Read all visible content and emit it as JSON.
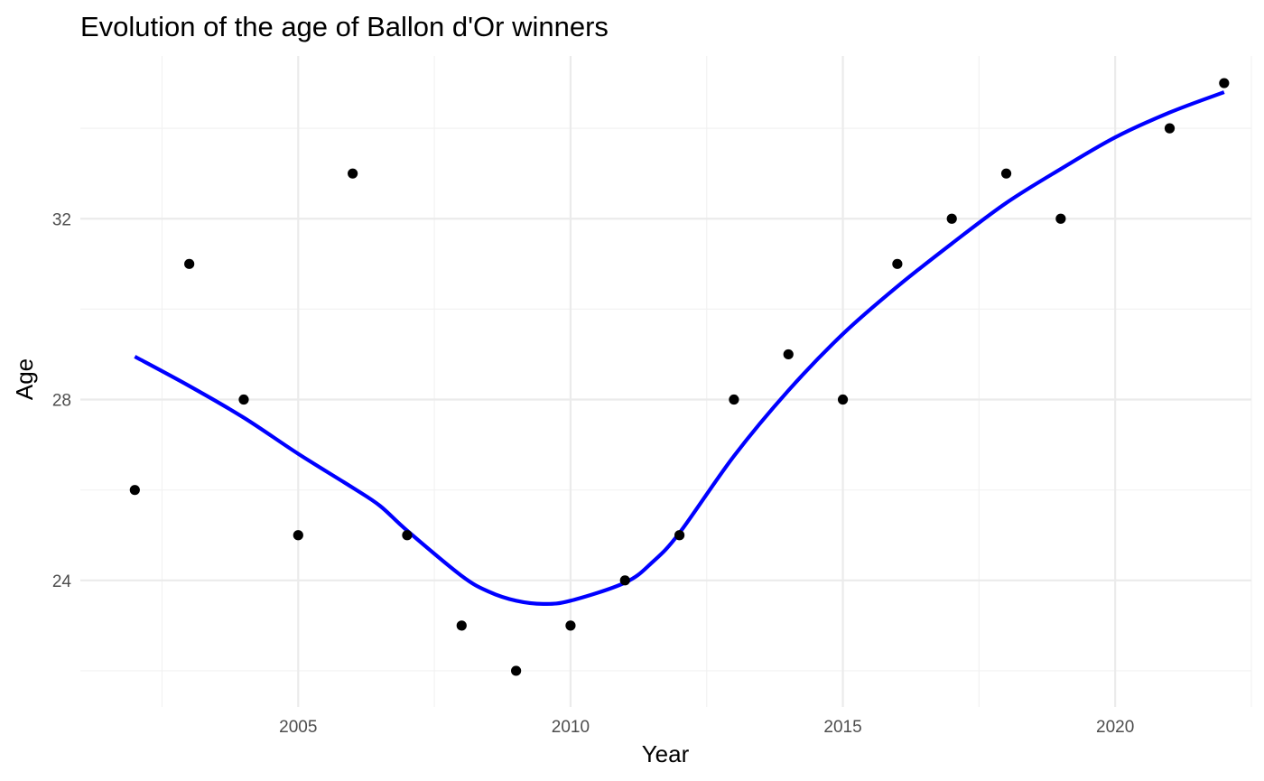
{
  "chart_data": {
    "type": "scatter",
    "title": "Evolution of the age of Ballon d'Or winners",
    "xlabel": "Year",
    "ylabel": "Age",
    "xlim": [
      2001,
      2022.5
    ],
    "ylim": [
      21.2,
      35.6
    ],
    "x_ticks": [
      2005,
      2010,
      2015,
      2020
    ],
    "x_tick_labels": [
      "2005",
      "2010",
      "2015",
      "2020"
    ],
    "x_minor_ticks": [
      2002.5,
      2007.5,
      2012.5,
      2017.5,
      2022.5
    ],
    "y_ticks": [
      24,
      28,
      32
    ],
    "y_tick_labels": [
      "24",
      "28",
      "32"
    ],
    "y_minor_ticks": [
      22,
      26,
      30,
      34
    ],
    "grid": true,
    "legend": "none",
    "series": [
      {
        "kind": "points",
        "color": "#000000",
        "x": [
          2002,
          2003,
          2004,
          2005,
          2006,
          2007,
          2008,
          2009,
          2010,
          2011,
          2012,
          2013,
          2014,
          2015,
          2016,
          2017,
          2018,
          2019,
          2021,
          2022
        ],
        "y": [
          26,
          31,
          28,
          25,
          33,
          25,
          23,
          22,
          23,
          24,
          25,
          28,
          29,
          28,
          31,
          32,
          33,
          32,
          34,
          35
        ]
      },
      {
        "kind": "smooth",
        "color": "#0000ff",
        "x": [
          2002,
          2003,
          2004,
          2005,
          2006,
          2006.5,
          2007,
          2008,
          2008.5,
          2009,
          2009.5,
          2010,
          2011,
          2011.5,
          2012,
          2013,
          2014,
          2015,
          2016,
          2017,
          2018,
          2019,
          2020,
          2021,
          2022
        ],
        "y": [
          28.95,
          28.3,
          27.6,
          26.8,
          26.05,
          25.65,
          25.1,
          24.1,
          23.75,
          23.55,
          23.48,
          23.55,
          23.95,
          24.4,
          25.05,
          26.75,
          28.2,
          29.45,
          30.5,
          31.45,
          32.35,
          33.1,
          33.8,
          34.35,
          34.8
        ]
      }
    ]
  }
}
